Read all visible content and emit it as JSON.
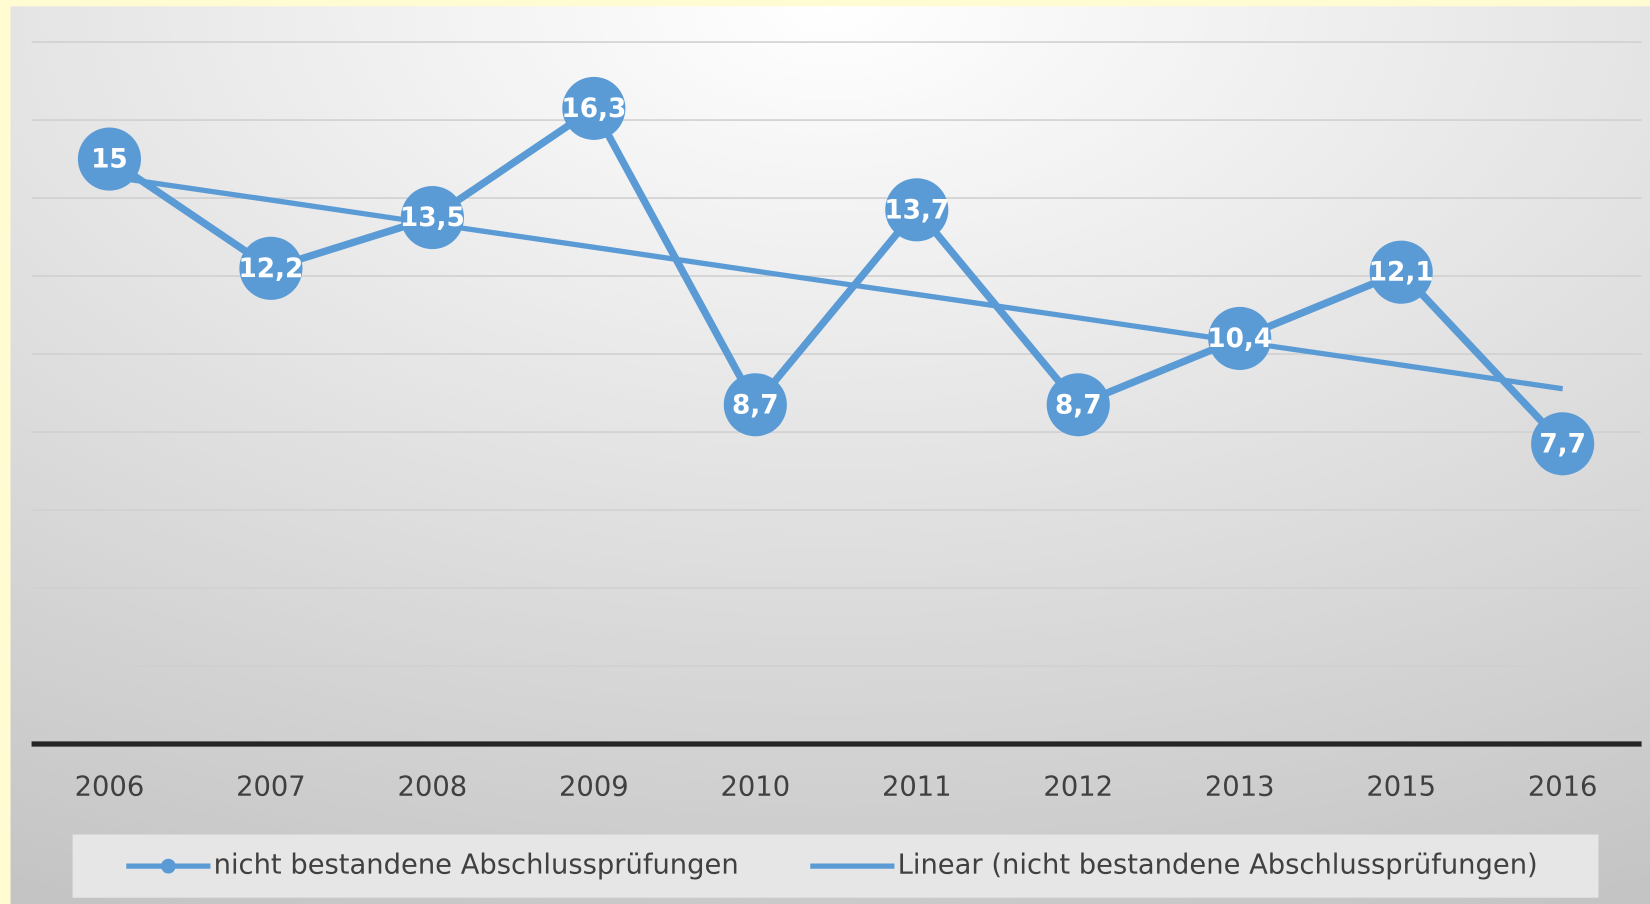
{
  "chart_data": {
    "type": "line",
    "categories": [
      "2006",
      "2007",
      "2008",
      "2009",
      "2010",
      "2011",
      "2012",
      "2013",
      "2015",
      "2016"
    ],
    "series": [
      {
        "name": "nicht bestandene Abschlussprüfungen",
        "color": "#5b9bd5",
        "markers": true,
        "values": [
          15,
          12.2,
          13.5,
          16.3,
          8.7,
          13.7,
          8.7,
          10.4,
          12.1,
          7.7
        ],
        "value_labels": [
          "15",
          "12,2",
          "13,5",
          "16,3",
          "8,7",
          "13,7",
          "8,7",
          "10,4",
          "12,1",
          "7,7"
        ]
      },
      {
        "name": "Linear (nicht bestandene Abschlussprüfungen)",
        "color": "#5b9bd5",
        "markers": false,
        "values": [
          14.55,
          13.95,
          13.34,
          12.74,
          12.13,
          11.53,
          10.93,
          10.32,
          9.72,
          9.11
        ]
      }
    ],
    "ylim": [
      0,
      18
    ],
    "yticks": [
      0,
      2,
      4,
      6,
      8,
      10,
      12,
      14,
      16,
      18
    ],
    "grid": true
  }
}
